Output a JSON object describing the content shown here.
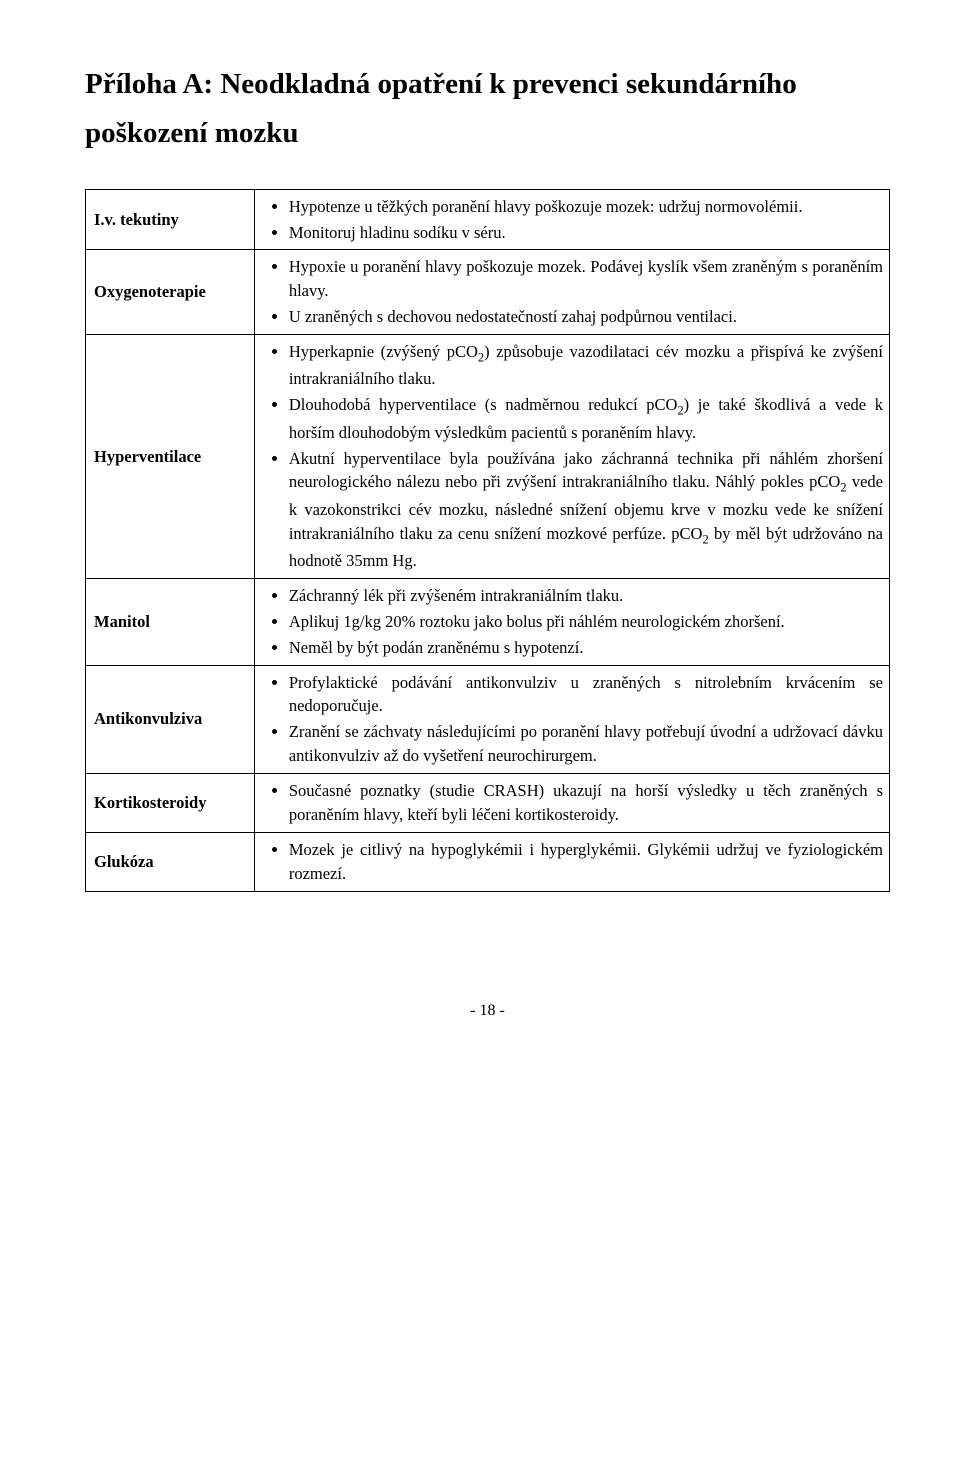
{
  "title": "Příloha A: Neodkladná opatření k prevenci sekundárního poškození mozku",
  "rows": [
    {
      "label": "I.v. tekutiny",
      "items": [
        "Hypotenze u těžkých poranění hlavy poškozuje mozek: udržuj normovolémii.",
        "Monitoruj hladinu sodíku v séru."
      ]
    },
    {
      "label": "Oxygenoterapie",
      "items": [
        "Hypoxie u poranění hlavy poškozuje mozek. Podávej kyslík všem zraněným s poraněním hlavy.",
        "U zraněných s dechovou nedostatečností zahaj podpůrnou ventilaci."
      ]
    },
    {
      "label": "Hyperventilace",
      "items": [
        "Hyperkapnie (zvýšený pCO<span class=\"sub\">2</span>) způsobuje vazodilataci cév mozku a přispívá ke zvýšení intrakraniálního tlaku.",
        "Dlouhodobá hyperventilace (s nadměrnou redukcí pCO<span class=\"sub\">2</span>) je také škodlivá a vede k horším dlouhodobým výsledkům pacientů s poraněním hlavy.",
        "Akutní hyperventilace byla používána jako záchranná technika při  náhlém zhoršení neurologického nálezu nebo při zvýšení intrakraniálního tlaku. Náhlý pokles pCO<span class=\"sub\">2</span> vede k vazokonstrikci cév mozku, následné snížení objemu krve v mozku vede ke snížení intrakraniálního tlaku za cenu snížení mozkové perfúze. pCO<span class=\"sub\">2</span> by měl být udržováno na hodnotě 35mm Hg."
      ]
    },
    {
      "label": "Manitol",
      "items": [
        "Záchranný lék při zvýšeném intrakraniálním tlaku.",
        "Aplikuj 1g/kg 20% roztoku jako bolus při náhlém neurologickém zhoršení.",
        "Neměl by být podán zraněnému s hypotenzí."
      ]
    },
    {
      "label": "Antikonvulziva",
      "items": [
        "Profylaktické podávání antikonvulziv u zraněných s nitrolebním krvácením se nedoporučuje.",
        "Zranění se záchvaty následujícími po poranění hlavy potřebují úvodní a udržovací dávku antikonvulziv až do vyšetření neurochirurgem."
      ]
    },
    {
      "label": "Kortikosteroidy",
      "items": [
        "Současné poznatky (studie CRASH) ukazují na horší výsledky u těch zraněných s poraněním hlavy, kteří byli léčeni kortikosteroidy."
      ]
    },
    {
      "label": "Glukóza",
      "items": [
        "Mozek je citlivý na hypoglykémii i hyperglykémii. Glykémii udržuj ve fyziologickém rozmezí."
      ]
    }
  ],
  "page_number": "- 18 -",
  "style": {
    "font_family": "Times New Roman",
    "title_fontsize": 29,
    "body_fontsize": 16.5,
    "line_height": 1.45,
    "border_color": "#000000",
    "background_color": "#ffffff",
    "text_color": "#000000",
    "label_col_width_pct": 21
  }
}
